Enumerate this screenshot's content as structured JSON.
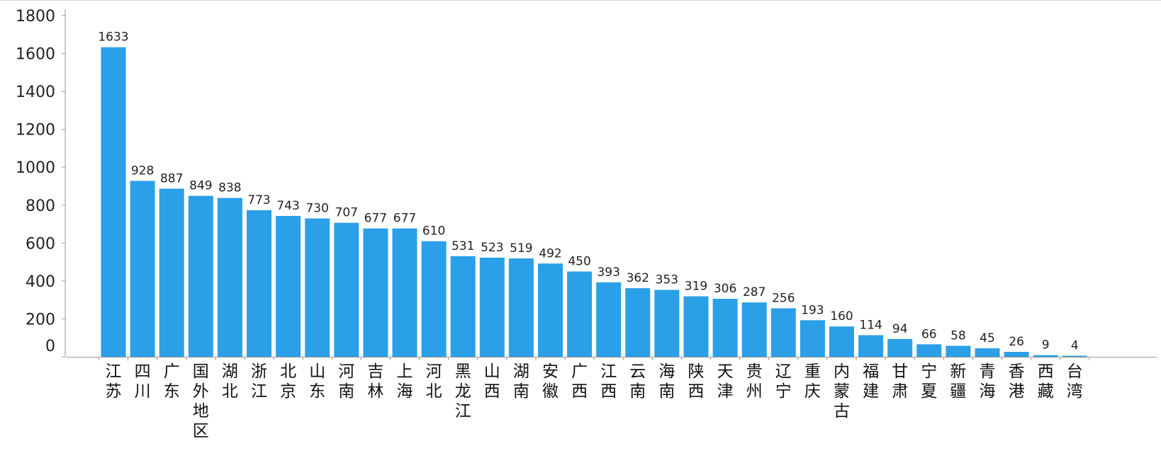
{
  "chart_data": {
    "type": "bar",
    "title": "",
    "xlabel": "",
    "ylabel": "",
    "ylim": [
      0,
      1800
    ],
    "yticks": [
      0,
      200,
      400,
      600,
      800,
      1000,
      1200,
      1400,
      1600,
      1800
    ],
    "grid": false,
    "legend": "none",
    "bar_color": "#2b9fe8",
    "categories": [
      "江苏",
      "四川",
      "广东",
      "国外地区",
      "湖北",
      "浙江",
      "北京",
      "山东",
      "河南",
      "吉林",
      "上海",
      "河北",
      "黑龙江",
      "山西",
      "湖南",
      "安徽",
      "广西",
      "江西",
      "云南",
      "海南",
      "陕西",
      "天津",
      "贵州",
      "辽宁",
      "重庆",
      "内蒙古",
      "福建",
      "甘肃",
      "宁夏",
      "新疆",
      "青海",
      "香港",
      "西藏",
      "台湾"
    ],
    "values": [
      1633,
      928,
      887,
      849,
      838,
      773,
      743,
      730,
      707,
      677,
      677,
      610,
      531,
      523,
      519,
      492,
      450,
      393,
      362,
      353,
      319,
      306,
      287,
      256,
      193,
      160,
      114,
      94,
      66,
      58,
      45,
      26,
      9,
      4
    ]
  }
}
